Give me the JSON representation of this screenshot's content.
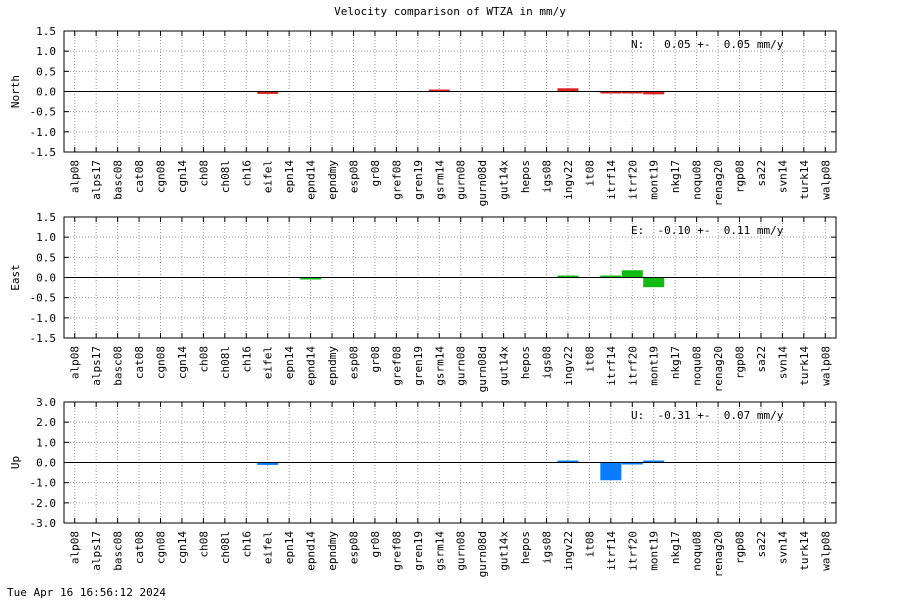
{
  "title": "Velocity comparison of WTZA in mm/y",
  "footer": "Tue Apr 16 16:56:12 2024",
  "chart_data": [
    {
      "type": "bar",
      "ylabel": "North",
      "stat": "N:   0.05 +-  0.05 mm/y",
      "color": "#dd2222",
      "ylim": [
        -1.5,
        1.5
      ],
      "yticks": [
        -1.5,
        -1.0,
        -0.5,
        0.0,
        0.5,
        1.0,
        1.5
      ],
      "categories": [
        "alp08",
        "alps17",
        "basc08",
        "cat08",
        "cgn08",
        "cgn14",
        "ch08",
        "ch08l",
        "ch16",
        "eifel",
        "epn14",
        "epnd14",
        "epndmy",
        "esp08",
        "gr08",
        "gref08",
        "gren19",
        "gsrm14",
        "gurn08",
        "gurn08d",
        "gut14x",
        "hepos",
        "igs08",
        "ingv22",
        "it08",
        "itrf14",
        "itrf20",
        "mont19",
        "nkg17",
        "noqu08",
        "renag20",
        "rgp08",
        "sa22",
        "svn14",
        "turk14",
        "walp08"
      ],
      "values": [
        0,
        0,
        0,
        0,
        0,
        0,
        0,
        0,
        0,
        -0.06,
        0,
        0,
        0,
        0,
        0,
        0,
        0,
        0.01,
        0,
        0,
        0,
        0,
        0,
        0.08,
        0,
        -0.02,
        -0.02,
        -0.07,
        0,
        0,
        0,
        0,
        0,
        0,
        0,
        0
      ]
    },
    {
      "type": "bar",
      "ylabel": "East",
      "stat": "E:  -0.10 +-  0.11 mm/y",
      "color": "#11bb11",
      "ylim": [
        -1.5,
        1.5
      ],
      "yticks": [
        -1.5,
        -1.0,
        -0.5,
        0.0,
        0.5,
        1.0,
        1.5
      ],
      "categories": [
        "alp08",
        "alps17",
        "basc08",
        "cat08",
        "cgn08",
        "cgn14",
        "ch08",
        "ch08l",
        "ch16",
        "eifel",
        "epn14",
        "epnd14",
        "epndmy",
        "esp08",
        "gr08",
        "gref08",
        "gren19",
        "gsrm14",
        "gurn08",
        "gurn08d",
        "gut14x",
        "hepos",
        "igs08",
        "ingv22",
        "it08",
        "itrf14",
        "itrf20",
        "mont19",
        "nkg17",
        "noqu08",
        "renag20",
        "rgp08",
        "sa22",
        "svn14",
        "turk14",
        "walp08"
      ],
      "values": [
        0,
        0,
        0,
        0,
        0,
        0,
        0,
        0,
        0,
        0,
        0,
        -0.02,
        0,
        0,
        0,
        0,
        0,
        0,
        0,
        0,
        0,
        0,
        0,
        0.02,
        0,
        0.04,
        0.18,
        -0.24,
        0,
        0,
        0,
        0,
        0,
        0,
        0,
        0
      ]
    },
    {
      "type": "bar",
      "ylabel": "Up",
      "stat": "U:  -0.31 +-  0.07 mm/y",
      "color": "#0a7cff",
      "ylim": [
        -3.0,
        3.0
      ],
      "yticks": [
        -3.0,
        -2.0,
        -1.0,
        0.0,
        1.0,
        2.0,
        3.0
      ],
      "categories": [
        "alp08",
        "alps17",
        "basc08",
        "cat08",
        "cgn08",
        "cgn14",
        "ch08",
        "ch08l",
        "ch16",
        "eifel",
        "epn14",
        "epnd14",
        "epndmy",
        "esp08",
        "gr08",
        "gref08",
        "gren19",
        "gsrm14",
        "gurn08",
        "gurn08d",
        "gut14x",
        "hepos",
        "igs08",
        "ingv22",
        "it08",
        "itrf14",
        "itrf20",
        "mont19",
        "nkg17",
        "noqu08",
        "renag20",
        "rgp08",
        "sa22",
        "svn14",
        "turk14",
        "walp08"
      ],
      "values": [
        0,
        0,
        0,
        0,
        0,
        0,
        0,
        0,
        0,
        -0.12,
        0,
        0,
        0,
        0,
        0,
        0,
        0,
        0,
        0,
        0,
        0,
        0,
        0,
        0.08,
        0,
        -0.88,
        -0.06,
        0.04,
        0,
        0,
        0,
        0,
        0,
        0,
        0,
        0
      ]
    }
  ]
}
